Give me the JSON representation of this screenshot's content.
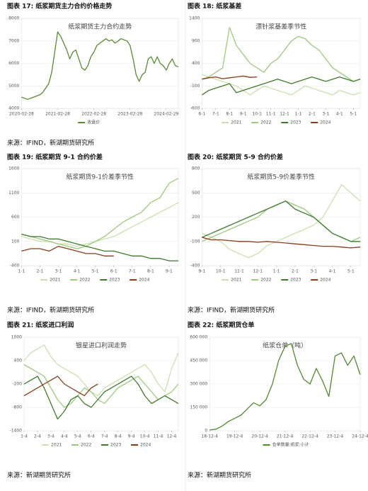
{
  "chart_data": [
    {
      "type": "line",
      "caption": "图表 17: 纸浆期货主力合约价格走势",
      "source": "来源：IFIND，新湖期货研究所",
      "title": "纸浆期货主力合约走势",
      "categories": [
        "2020-02-28",
        null,
        null,
        null,
        null,
        null,
        null,
        null,
        null,
        null,
        null,
        null,
        "2021-02-28",
        null,
        null,
        null,
        null,
        null,
        null,
        null,
        null,
        null,
        null,
        null,
        "2022-02-28",
        null,
        null,
        null,
        null,
        null,
        null,
        null,
        null,
        null,
        null,
        null,
        "2023-02-28",
        null,
        null,
        null,
        null,
        null,
        null,
        null,
        null,
        null,
        null,
        null,
        "2024-02-29",
        null,
        null,
        null,
        null
      ],
      "series": [
        {
          "name": "收盘价",
          "color": "#5a8a30",
          "values": [
            4500,
            4450,
            4400,
            4450,
            4500,
            4550,
            4600,
            4700,
            4900,
            5100,
            5600,
            6500,
            7400,
            7200,
            6900,
            6600,
            6200,
            6500,
            6600,
            6200,
            5800,
            5700,
            5900,
            6300,
            6500,
            6800,
            6900,
            7000,
            7100,
            7000,
            7050,
            6900,
            7000,
            7100,
            7050,
            7000,
            6800,
            6200,
            5500,
            5200,
            5500,
            5600,
            6200,
            6300,
            6000,
            6300,
            6000,
            5900,
            5700,
            6000,
            6200,
            5900,
            5850
          ]
        }
      ],
      "ylim": [
        4000,
        8000
      ],
      "yticks": [
        4000,
        5000,
        6000,
        7000,
        8000
      ],
      "legend": "bottom"
    },
    {
      "type": "line",
      "caption": "图表 18: 纸浆基差",
      "title": "漂针浆基差季节性",
      "categories": [
        "6-1",
        null,
        "7-1",
        null,
        "8-1",
        null,
        "9-1",
        null,
        "10-1",
        null,
        "11-1",
        null,
        "12-1",
        null,
        "1-1",
        null,
        "2-1",
        null,
        "3-1",
        null,
        "4-1",
        null,
        "5-1",
        null
      ],
      "series": [
        {
          "name": "2021",
          "color": "#c9e0b0",
          "values": [
            150,
            100,
            50,
            0,
            -50,
            -100,
            -200,
            -300,
            -200,
            -100,
            -150,
            -200,
            -250,
            -300,
            -200,
            -100,
            -150,
            -200,
            -250,
            -300,
            -200,
            -250,
            -300,
            -250
          ]
        },
        {
          "name": "2022",
          "color": "#9cc97a",
          "values": [
            50,
            100,
            200,
            300,
            1200,
            800,
            600,
            400,
            300,
            200,
            400,
            500,
            700,
            900,
            1000,
            950,
            800,
            700,
            500,
            300,
            200,
            100,
            0,
            50
          ]
        },
        {
          "name": "2023",
          "color": "#3f7a2a",
          "values": [
            -300,
            -200,
            -150,
            -100,
            -50,
            -250,
            -200,
            -150,
            -100,
            -50,
            0,
            50,
            0,
            -50,
            0,
            50,
            100,
            50,
            0,
            50,
            100,
            50,
            0,
            50
          ]
        },
        {
          "name": "2024",
          "color": "#8b3a1a",
          "values": [
            50,
            80,
            100,
            60,
            80,
            100,
            120,
            90,
            100,
            null,
            null,
            null,
            null,
            null,
            null,
            null,
            null,
            null,
            null,
            null,
            null,
            null,
            null,
            null
          ]
        }
      ],
      "ylim": [
        -600,
        1400
      ],
      "yticks": [
        -600,
        -100,
        400,
        900,
        1400
      ],
      "legend": "bottom"
    },
    {
      "type": "line",
      "caption": "图表 19: 纸浆期货 9-1 合约价差",
      "source": "来源：IFIND，新湖期货研究所",
      "title": "纸浆期货9-1价差季节性",
      "categories": [
        "1-1",
        null,
        "2-1",
        null,
        "3-1",
        null,
        "4-1",
        null,
        "5-1",
        null,
        "6-1",
        null,
        "7-1",
        null,
        "8-1",
        null,
        "9-1",
        null
      ],
      "series": [
        {
          "name": "2021",
          "color": "#c9e0b0",
          "values": [
            200,
            150,
            100,
            100,
            50,
            50,
            0,
            50,
            100,
            150,
            200,
            300,
            400,
            500,
            600,
            700,
            800,
            900
          ]
        },
        {
          "name": "2022",
          "color": "#9cc97a",
          "values": [
            250,
            200,
            150,
            100,
            50,
            0,
            -50,
            0,
            100,
            200,
            350,
            500,
            600,
            700,
            900,
            1000,
            1300,
            1400
          ]
        },
        {
          "name": "2023",
          "color": "#3f7a2a",
          "values": [
            250,
            200,
            200,
            150,
            150,
            100,
            50,
            0,
            -50,
            -100,
            -100,
            -150,
            -200,
            -200,
            -250,
            -250,
            -300,
            -300
          ]
        },
        {
          "name": "2024",
          "color": "#8b3a1a",
          "values": [
            -100,
            -50,
            -50,
            -100,
            0,
            -50,
            -100,
            -150,
            -150,
            -200,
            -200,
            null,
            null,
            null,
            null,
            null,
            null,
            null
          ]
        }
      ],
      "ylim": [
        -400,
        1600
      ],
      "yticks": [
        -400,
        100,
        600,
        1100,
        1600
      ],
      "legend": "bottom"
    },
    {
      "type": "line",
      "caption": "图表 20: 纸浆期货 5-9 合约价差",
      "source": "来源：IFIND，新湖期货研究所",
      "title": "纸浆期货5-9价差季节性",
      "categories": [
        "9-1",
        null,
        "10-1",
        null,
        "11-1",
        null,
        "12-1",
        null,
        "1-1",
        null,
        "2-1",
        null,
        "3-1",
        null,
        "4-1",
        null,
        "5-1",
        null
      ],
      "series": [
        {
          "name": "2021",
          "color": "#c9e0b0",
          "values": [
            0,
            -50,
            -100,
            -200,
            -250,
            -300,
            -250,
            -150,
            -100,
            -50,
            0,
            50,
            100,
            200,
            400,
            600,
            500,
            400
          ]
        },
        {
          "name": "2022",
          "color": "#9cc97a",
          "values": [
            -100,
            -50,
            0,
            50,
            100,
            150,
            200,
            300,
            350,
            400,
            350,
            300,
            200,
            100,
            0,
            -50,
            -100,
            -50
          ]
        },
        {
          "name": "2023",
          "color": "#3f7a2a",
          "values": [
            -50,
            0,
            50,
            100,
            150,
            200,
            250,
            300,
            350,
            400,
            300,
            250,
            200,
            100,
            0,
            -50,
            -100,
            -100
          ]
        },
        {
          "name": "2024",
          "color": "#8b3a1a",
          "values": [
            -50,
            -80,
            -80,
            -90,
            -100,
            -100,
            -110,
            -100,
            -110,
            -120,
            -130,
            -140,
            -150,
            -160,
            -160,
            -170,
            -180,
            -170
          ]
        }
      ],
      "ylim": [
        -400,
        800
      ],
      "yticks": [
        -400,
        -100,
        200,
        500,
        800
      ],
      "legend": "bottom"
    },
    {
      "type": "line",
      "caption": "图表 21: 纸浆进口利润",
      "source": "来源：新湖期货研究所",
      "title": "银星进口利润走势",
      "categories": [
        "1-4",
        null,
        "2-4",
        null,
        "3-4",
        null,
        "4-4",
        null,
        "5-4",
        null,
        "6-4",
        null,
        "7-4",
        null,
        "8-4",
        null,
        "9-4",
        null,
        "10-4",
        null,
        "11-4",
        null,
        "12-4",
        null
      ],
      "series": [
        {
          "name": "2021",
          "color": "#c9e0b0",
          "values": [
            400,
            600,
            700,
            800,
            500,
            300,
            200,
            100,
            0,
            -200,
            -400,
            -500,
            -300,
            -200,
            -100,
            0,
            100,
            200,
            300,
            100,
            -200,
            -400,
            200,
            600
          ]
        },
        {
          "name": "2022",
          "color": "#9cc97a",
          "values": [
            300,
            200,
            100,
            0,
            -300,
            -600,
            -800,
            -700,
            -500,
            -300,
            -400,
            -600,
            -700,
            -500,
            -300,
            -200,
            -100,
            0,
            -200,
            -400,
            -600,
            -500,
            -400,
            -200
          ]
        },
        {
          "name": "2023",
          "color": "#3f7a2a",
          "values": [
            -200,
            -100,
            0,
            -300,
            -700,
            -1100,
            -900,
            -600,
            -500,
            -700,
            -800,
            -600,
            -400,
            -300,
            -200,
            -100,
            0,
            -200,
            -500,
            -700,
            -600,
            -500,
            -600,
            -700
          ]
        },
        {
          "name": "2024",
          "color": "#8b3a1a",
          "values": [
            -500,
            -400,
            -300,
            -200,
            -100,
            0,
            -200,
            -300,
            -400,
            -500,
            -300,
            -200,
            null,
            null,
            null,
            null,
            null,
            null,
            null,
            null,
            null,
            null,
            null,
            null
          ]
        }
      ],
      "ylim": [
        -1400,
        1000
      ],
      "yticks": [
        -1400,
        -800,
        -200,
        400,
        1000
      ],
      "legend": "bottom"
    },
    {
      "type": "line",
      "caption": "图表 22: 纸浆期货仓单",
      "source": "来源：新湖期货研究所",
      "title": "纸浆仓单（吨）",
      "categories": [
        "18-12-4",
        null,
        null,
        null,
        "19-12-4",
        null,
        null,
        null,
        "20-12-4",
        null,
        null,
        null,
        "21-12-4",
        null,
        null,
        null,
        "22-12-4",
        null,
        null,
        null,
        "23-12-4",
        null,
        null,
        null,
        "24-12-4"
      ],
      "series": [
        {
          "name": "仓单数量:纸浆:小计",
          "color": "#4f8a2f",
          "values": [
            5000,
            10000,
            30000,
            60000,
            80000,
            100000,
            140000,
            180000,
            160000,
            200000,
            300000,
            450000,
            540000,
            560000,
            420000,
            330000,
            300000,
            400000,
            320000,
            220000,
            480000,
            500000,
            420000,
            480000,
            360000
          ]
        }
      ],
      "ylim": [
        0,
        600000
      ],
      "yticks": [
        0,
        {
          "value": 150000,
          "label": "150 000"
        },
        {
          "value": 300000,
          "label": "300 000"
        },
        {
          "value": 450000,
          "label": "450 000"
        },
        {
          "value": 600000,
          "label": "600 000"
        }
      ],
      "legend": "bottom"
    }
  ]
}
